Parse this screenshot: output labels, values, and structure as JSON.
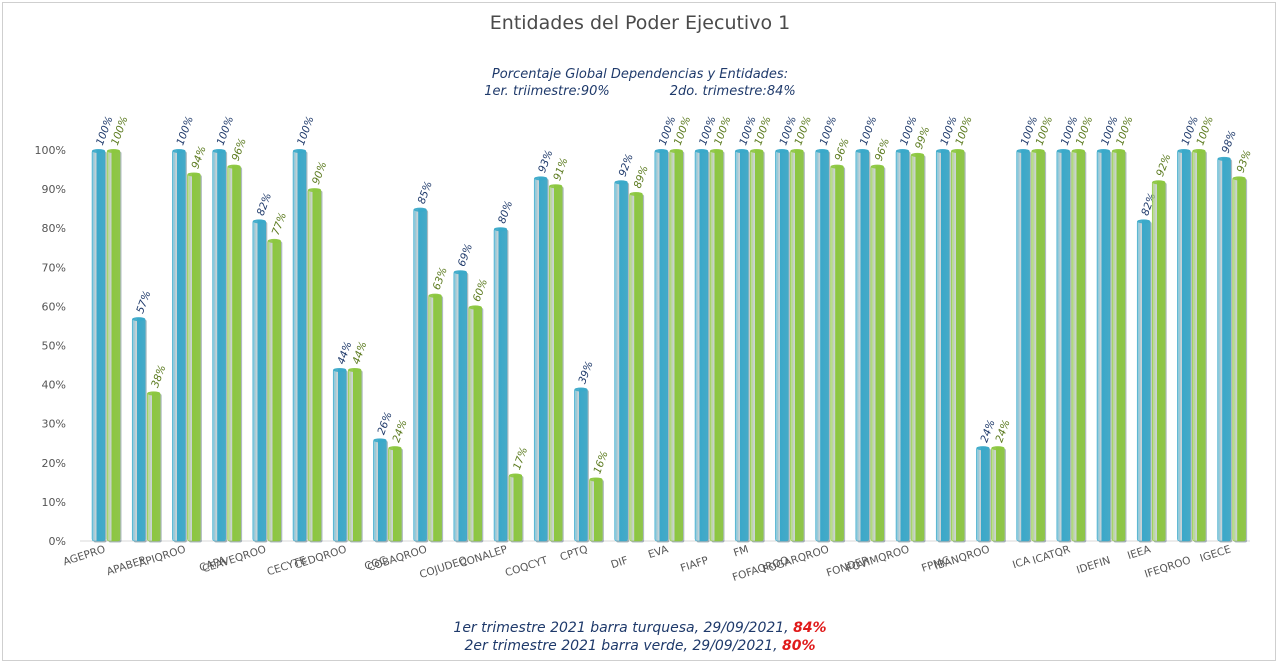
{
  "chart_data": {
    "type": "bar",
    "title": "Entidades del Poder Ejecutivo 1",
    "subtitle_line1": "Porcentaje Global  Dependencias y Entidades:",
    "subtitle_line2a": "1er. triimestre:90%",
    "subtitle_line2b": "2do. trimestre:84%",
    "ylim": [
      0,
      100
    ],
    "yticks": [
      "0%",
      "10%",
      "20%",
      "30%",
      "40%",
      "50%",
      "60%",
      "70%",
      "80%",
      "90%",
      "100%"
    ],
    "grid": false,
    "categories": [
      "AGEPRO",
      "APABEP",
      "APIQROO",
      "CAPA",
      "CEAVEQROO",
      "CECYTE",
      "CEDQROO",
      "CGC",
      "COBAQROO",
      "COJUDEQ",
      "CONALEP",
      "COQCYT",
      "CPTQ",
      "DIF",
      "EVA",
      "FIAFP",
      "FM",
      "FOFAQROO",
      "FOGARQROO",
      "FONDER",
      "FOVIMQROO",
      "FPMC",
      "IBANQROO",
      "ICA",
      "ICATQR",
      "IDEFIN",
      "IEEA",
      "IFEQROO",
      "IGECE"
    ],
    "series": [
      {
        "color": "#3aa8c9",
        "label_color": "#1f3a6b",
        "values": [
          100,
          57,
          100,
          100,
          82,
          100,
          44,
          26,
          85,
          69,
          80,
          93,
          39,
          92,
          100,
          100,
          100,
          100,
          100,
          100,
          100,
          100,
          24,
          100,
          100,
          100,
          82,
          100,
          98
        ]
      },
      {
        "color": "#8cc63f",
        "label_color": "#5b7a1e",
        "values": [
          100,
          38,
          94,
          96,
          77,
          90,
          44,
          24,
          63,
          60,
          17,
          91,
          16,
          89,
          100,
          100,
          100,
          100,
          96,
          96,
          99,
          100,
          24,
          100,
          100,
          100,
          92,
          100,
          93
        ]
      }
    ],
    "legend_placement": "bottom"
  },
  "footer": {
    "line1_text": "1er trimestre  2021 barra turquesa,  29/09/2021, ",
    "line1_value": "84%",
    "line2_text": "2er trimestre  2021 barra verde,  29/09/2021, ",
    "line2_value": "80%"
  }
}
